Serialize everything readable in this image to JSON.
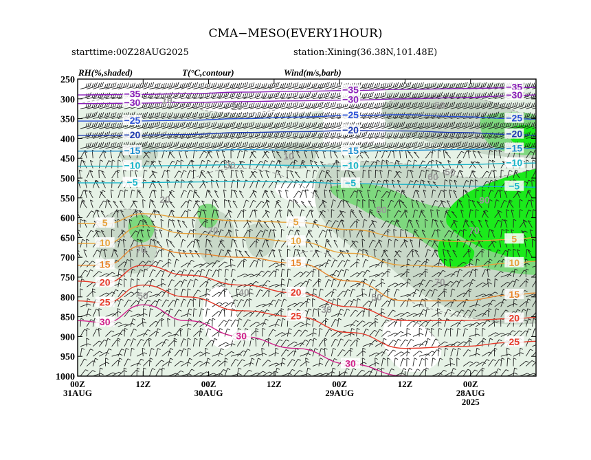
{
  "title": "CMA−MESO(EVERY1HOUR)",
  "starttime": "starttime:00Z28AUG2025",
  "station": "station:Xining(36.38N,101.48E)",
  "headers": {
    "rh": "RH(%,shaded)",
    "temp": "T(°C,contour)",
    "wind": "Wind(m/s,barb)"
  },
  "chart_data": {
    "type": "heatmap",
    "y_axis": {
      "label": "",
      "reversed": true,
      "ticks": [
        250,
        300,
        350,
        400,
        450,
        500,
        550,
        600,
        650,
        700,
        750,
        800,
        850,
        900,
        950,
        1000
      ],
      "ylim": [
        250,
        1000
      ]
    },
    "x_axis": {
      "label": "",
      "reversed": true,
      "xlim": [
        0,
        84
      ],
      "ticks": [
        {
          "h": 0,
          "line1": "00Z",
          "line2": "31AUG",
          "line3": ""
        },
        {
          "h": 12,
          "line1": "12Z",
          "line2": "",
          "line3": ""
        },
        {
          "h": 24,
          "line1": "00Z",
          "line2": "30AUG",
          "line3": ""
        },
        {
          "h": 36,
          "line1": "12Z",
          "line2": "",
          "line3": ""
        },
        {
          "h": 48,
          "line1": "00Z",
          "line2": "29AUG",
          "line3": ""
        },
        {
          "h": 60,
          "line1": "12Z",
          "line2": "",
          "line3": ""
        },
        {
          "h": 72,
          "line1": "00Z",
          "line2": "28AUG",
          "line3": "2025"
        }
      ]
    },
    "rh_levels": [
      50,
      70,
      80,
      90
    ],
    "rh_colors": [
      "#e6f2e6",
      "#c8d8c8",
      "#7ed87e",
      "#1bea1b"
    ],
    "temperature_contours": [
      {
        "value": -35,
        "label": "−35",
        "color": "#8a1fb8",
        "points": [
          [
            0,
            290
          ],
          [
            10,
            289
          ],
          [
            20,
            287
          ],
          [
            30,
            283
          ],
          [
            40,
            281
          ],
          [
            50,
            279
          ],
          [
            60,
            276
          ],
          [
            70,
            274
          ],
          [
            80,
            272
          ],
          [
            84,
            271
          ]
        ]
      },
      {
        "value": -30,
        "label": "−30",
        "color": "#8a1fb8",
        "points": [
          [
            0,
            312
          ],
          [
            10,
            311
          ],
          [
            20,
            309
          ],
          [
            30,
            307
          ],
          [
            40,
            305
          ],
          [
            50,
            303
          ],
          [
            60,
            300
          ],
          [
            70,
            297
          ],
          [
            80,
            292
          ],
          [
            84,
            290
          ]
        ]
      },
      {
        "value": -25,
        "label": "−25",
        "color": "#2a50d6",
        "points": [
          [
            0,
            356
          ],
          [
            10,
            356
          ],
          [
            20,
            354
          ],
          [
            30,
            350
          ],
          [
            40,
            346
          ],
          [
            50,
            342
          ],
          [
            60,
            340
          ],
          [
            70,
            345
          ],
          [
            80,
            350
          ],
          [
            84,
            351
          ]
        ]
      },
      {
        "value": -20,
        "label": "−20",
        "color": "#1f3bb0",
        "points": [
          [
            0,
            392
          ],
          [
            10,
            392
          ],
          [
            20,
            390
          ],
          [
            30,
            385
          ],
          [
            40,
            383
          ],
          [
            50,
            380
          ],
          [
            60,
            381
          ],
          [
            70,
            385
          ],
          [
            80,
            390
          ],
          [
            84,
            392
          ]
        ]
      },
      {
        "value": -15,
        "label": "−15",
        "color": "#1e8fd0",
        "points": [
          [
            0,
            432
          ],
          [
            10,
            432
          ],
          [
            20,
            431
          ],
          [
            30,
            428
          ],
          [
            40,
            430
          ],
          [
            50,
            432
          ],
          [
            60,
            430
          ],
          [
            70,
            428
          ],
          [
            80,
            426
          ],
          [
            84,
            425
          ]
        ]
      },
      {
        "value": -10,
        "label": "−10",
        "color": "#19b4c8",
        "points": [
          [
            0,
            470
          ],
          [
            10,
            470
          ],
          [
            20,
            468
          ],
          [
            30,
            466
          ],
          [
            40,
            468
          ],
          [
            50,
            470
          ],
          [
            60,
            468
          ],
          [
            70,
            466
          ],
          [
            80,
            463
          ],
          [
            84,
            462
          ]
        ]
      },
      {
        "value": -5,
        "label": "−5",
        "color": "#19b4c8",
        "points": [
          [
            0,
            512
          ],
          [
            10,
            512
          ],
          [
            20,
            510
          ],
          [
            30,
            508
          ],
          [
            40,
            510
          ],
          [
            50,
            514
          ],
          [
            60,
            516
          ],
          [
            70,
            520
          ],
          [
            80,
            522
          ],
          [
            84,
            523
          ]
        ]
      },
      {
        "value": 5,
        "label": "5",
        "color": "#e6a23c",
        "points": [
          [
            0,
            615
          ],
          [
            5,
            615
          ],
          [
            12,
            590
          ],
          [
            20,
            600
          ],
          [
            30,
            608
          ],
          [
            40,
            612
          ],
          [
            50,
            630
          ],
          [
            60,
            650
          ],
          [
            70,
            660
          ],
          [
            80,
            655
          ],
          [
            84,
            650
          ]
        ]
      },
      {
        "value": 10,
        "label": "10",
        "color": "#e6a23c",
        "points": [
          [
            0,
            665
          ],
          [
            5,
            665
          ],
          [
            12,
            620
          ],
          [
            20,
            640
          ],
          [
            30,
            650
          ],
          [
            40,
            660
          ],
          [
            50,
            690
          ],
          [
            60,
            720
          ],
          [
            70,
            725
          ],
          [
            80,
            715
          ],
          [
            84,
            710
          ]
        ]
      },
      {
        "value": 15,
        "label": "15",
        "color": "#e8862d",
        "points": [
          [
            0,
            720
          ],
          [
            5,
            720
          ],
          [
            12,
            670
          ],
          [
            20,
            690
          ],
          [
            30,
            700
          ],
          [
            40,
            715
          ],
          [
            50,
            760
          ],
          [
            60,
            810
          ],
          [
            70,
            810
          ],
          [
            80,
            795
          ],
          [
            84,
            790
          ]
        ]
      },
      {
        "value": 20,
        "label": "20",
        "color": "#e53a2a",
        "points": [
          [
            0,
            760
          ],
          [
            5,
            765
          ],
          [
            12,
            720
          ],
          [
            20,
            745
          ],
          [
            30,
            770
          ],
          [
            40,
            790
          ],
          [
            50,
            825
          ],
          [
            60,
            860
          ],
          [
            70,
            860
          ],
          [
            80,
            855
          ],
          [
            84,
            852
          ]
        ]
      },
      {
        "value": 25,
        "label": "25",
        "color": "#e53a2a",
        "points": [
          [
            0,
            810
          ],
          [
            5,
            815
          ],
          [
            12,
            770
          ],
          [
            20,
            800
          ],
          [
            30,
            835
          ],
          [
            40,
            850
          ],
          [
            50,
            890
          ],
          [
            60,
            930
          ],
          [
            70,
            925
          ],
          [
            80,
            915
          ],
          [
            84,
            912
          ]
        ]
      },
      {
        "value": 30,
        "label": "30",
        "color": "#d0208a",
        "points": [
          [
            0,
            860
          ],
          [
            5,
            865
          ],
          [
            12,
            820
          ],
          [
            20,
            860
          ],
          [
            30,
            900
          ],
          [
            40,
            930
          ],
          [
            50,
            970
          ],
          [
            60,
            1000
          ]
        ]
      }
    ],
    "rh_labels": [
      "10",
      "20",
      "30",
      "50",
      "50",
      "70",
      "70",
      "70",
      "80",
      "90",
      "50",
      "60",
      "70",
      "50",
      "40",
      "30",
      "20",
      "10"
    ]
  }
}
